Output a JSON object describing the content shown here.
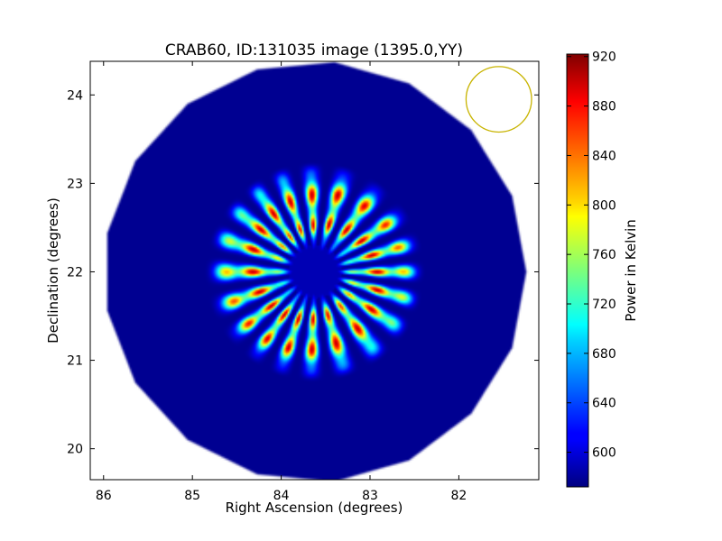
{
  "chart_data": {
    "type": "heatmap",
    "title": "CRAB60, ID:131035 image (1395.0,YY)",
    "xlabel": "Right Ascension (degrees)",
    "ylabel": "Declination (degrees)",
    "xlim": [
      86.15,
      81.1
    ],
    "ylim": [
      19.65,
      24.38
    ],
    "x_ticks": [
      86,
      85,
      84,
      83,
      82
    ],
    "y_ticks": [
      20,
      21,
      22,
      23,
      24
    ],
    "x_tick_labels": [
      "86",
      "85",
      "84",
      "83",
      "82"
    ],
    "y_tick_labels": [
      "20",
      "21",
      "22",
      "23",
      "24"
    ],
    "colorbar": {
      "label": "Power in Kelvin",
      "min": 572,
      "max": 922,
      "ticks": [
        600,
        640,
        680,
        720,
        760,
        800,
        840,
        880,
        920
      ],
      "tick_labels": [
        "600",
        "640",
        "680",
        "720",
        "760",
        "800",
        "840",
        "880",
        "920"
      ],
      "colormap": "jet"
    },
    "image": {
      "center_ra": 83.62,
      "center_dec": 22.0,
      "field_radius_deg": 2.4,
      "field_edges": 17,
      "background_value": 578,
      "center_value": 590,
      "ring_peak_value": 900,
      "spoke_count": 20,
      "spoke_inner_radius_deg": 0.2,
      "spoke_outer_radius_deg": 1.25
    },
    "beam": {
      "center_ra": 81.55,
      "center_dec": 23.95,
      "radius_deg": 0.37,
      "color": "#c8b400"
    }
  }
}
